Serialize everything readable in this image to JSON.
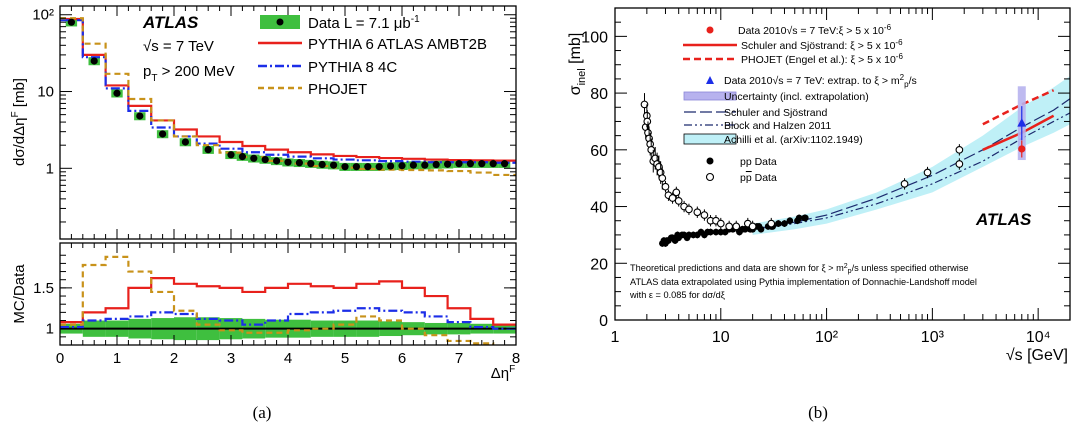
{
  "panels": {
    "a_caption": "(a)",
    "b_caption": "(b)"
  },
  "chart_data": [
    {
      "type": "line",
      "panel": "a-top",
      "xlabel": "ΔηF",
      "ylabel": "dσ/dΔηF [mb]",
      "ylim": [
        0.12,
        130
      ],
      "yscale": "log",
      "ytick_labels": [
        "1",
        "10",
        "10²"
      ],
      "xlim": [
        0,
        8
      ],
      "annotations": [
        "ATLAS",
        "√s = 7 TeV",
        "pT > 200 MeV"
      ],
      "legend_position": "top-right",
      "data": {
        "name": "Data L = 7.1 μb-1",
        "x": [
          0.2,
          0.6,
          1.0,
          1.4,
          1.8,
          2.2,
          2.6,
          3.0,
          3.2,
          3.4,
          3.6,
          3.8,
          4.0,
          4.2,
          4.4,
          4.6,
          4.8,
          5.0,
          5.2,
          5.4,
          5.6,
          5.8,
          6.0,
          6.2,
          6.4,
          6.6,
          6.8,
          7.0,
          7.2,
          7.4,
          7.6,
          7.8
        ],
        "y": [
          80,
          25,
          9.5,
          4.8,
          2.8,
          2.2,
          1.75,
          1.5,
          1.42,
          1.35,
          1.3,
          1.25,
          1.2,
          1.18,
          1.15,
          1.12,
          1.1,
          1.05,
          1.05,
          1.05,
          1.05,
          1.07,
          1.08,
          1.1,
          1.1,
          1.12,
          1.13,
          1.15,
          1.15,
          1.15,
          1.15,
          1.15
        ],
        "band_rel": 0.12
      },
      "series": [
        {
          "name": "PYTHIA 6 ATLAS AMBT2B",
          "color": "#e8211c",
          "dash": "solid",
          "edges": [
            0,
            0.4,
            0.8,
            1.2,
            1.6,
            2.0,
            2.4,
            2.8,
            3.2,
            3.6,
            4.0,
            4.4,
            4.8,
            5.2,
            5.6,
            6.0,
            6.4,
            6.8,
            7.2,
            7.6,
            8.0
          ],
          "values": [
            88,
            30,
            12,
            6.5,
            4.2,
            3.2,
            2.6,
            2.2,
            1.95,
            1.75,
            1.62,
            1.52,
            1.45,
            1.4,
            1.36,
            1.33,
            1.3,
            1.28,
            1.27,
            1.26
          ]
        },
        {
          "name": "PYTHIA 8 4C",
          "color": "#1c2ee8",
          "dash": "dashdot",
          "edges": [
            0,
            0.4,
            0.8,
            1.2,
            1.6,
            2.0,
            2.4,
            2.8,
            3.2,
            3.6,
            4.0,
            4.4,
            4.8,
            5.2,
            5.6,
            6.0,
            6.4,
            6.8,
            7.2,
            7.6,
            8.0
          ],
          "values": [
            85,
            28,
            11,
            5.6,
            3.4,
            2.6,
            2.1,
            1.8,
            1.62,
            1.5,
            1.42,
            1.35,
            1.3,
            1.27,
            1.24,
            1.22,
            1.2,
            1.2,
            1.2,
            1.18
          ]
        },
        {
          "name": "PHOJET",
          "color": "#c8921a",
          "dash": "dashed",
          "edges": [
            0,
            0.4,
            0.8,
            1.2,
            1.6,
            2.0,
            2.4,
            2.8,
            3.2,
            3.6,
            4.0,
            4.4,
            4.8,
            5.2,
            5.6,
            6.0,
            6.4,
            6.8,
            7.2,
            7.6,
            8.0
          ],
          "values": [
            90,
            42,
            17,
            8,
            4.2,
            2.6,
            2.0,
            1.6,
            1.4,
            1.25,
            1.15,
            1.07,
            1.02,
            0.98,
            0.96,
            0.95,
            0.94,
            0.92,
            0.88,
            0.82
          ]
        }
      ]
    },
    {
      "type": "line",
      "panel": "a-ratio",
      "xlabel": "ΔηF",
      "ylabel": "MC/Data",
      "ylim": [
        0.8,
        2.05
      ],
      "yticks": [
        1,
        1.5
      ],
      "ytick_labels": [
        "1",
        "1.5"
      ],
      "xlim": [
        0,
        8
      ],
      "xticks": [
        0,
        1,
        2,
        3,
        4,
        5,
        6,
        7,
        8
      ],
      "xtick_labels": [
        "0",
        "1",
        "2",
        "3",
        "4",
        "5",
        "6",
        "7",
        "8"
      ],
      "band": {
        "edges": [
          0,
          0.4,
          0.8,
          1.2,
          1.6,
          2.0,
          2.4,
          2.8,
          3.2,
          3.6,
          4.0,
          4.4,
          4.8,
          5.2,
          5.6,
          6.0,
          6.4,
          6.8,
          7.2,
          7.6,
          8.0
        ],
        "low": [
          0.94,
          0.9,
          0.9,
          0.88,
          0.87,
          0.86,
          0.86,
          0.87,
          0.88,
          0.89,
          0.89,
          0.9,
          0.9,
          0.9,
          0.91,
          0.92,
          0.93,
          0.93,
          0.94,
          0.94
        ],
        "high": [
          1.06,
          1.1,
          1.1,
          1.12,
          1.13,
          1.14,
          1.14,
          1.13,
          1.12,
          1.11,
          1.11,
          1.1,
          1.1,
          1.1,
          1.09,
          1.08,
          1.07,
          1.07,
          1.06,
          1.06
        ]
      },
      "series": [
        {
          "name": "PYTHIA 6 ATLAS AMBT2B",
          "color": "#e8211c",
          "dash": "solid",
          "edges": [
            0,
            0.4,
            0.8,
            1.2,
            1.6,
            2.0,
            2.4,
            2.8,
            3.2,
            3.6,
            4.0,
            4.4,
            4.8,
            5.2,
            5.6,
            6.0,
            6.4,
            6.8,
            7.2,
            7.6,
            8.0
          ],
          "values": [
            1.08,
            1.2,
            1.25,
            1.5,
            1.62,
            1.55,
            1.52,
            1.5,
            1.45,
            1.5,
            1.55,
            1.52,
            1.5,
            1.55,
            1.58,
            1.5,
            1.4,
            1.25,
            1.12,
            1.05
          ]
        },
        {
          "name": "PYTHIA 8 4C",
          "color": "#1c2ee8",
          "dash": "dashdot",
          "edges": [
            0,
            0.4,
            0.8,
            1.2,
            1.6,
            2.0,
            2.4,
            2.8,
            3.2,
            3.6,
            4.0,
            4.4,
            4.8,
            5.2,
            5.6,
            6.0,
            6.4,
            6.8,
            7.2,
            7.6,
            8.0
          ],
          "values": [
            1.02,
            1.1,
            1.12,
            1.15,
            1.2,
            1.18,
            1.12,
            1.1,
            1.05,
            1.1,
            1.18,
            1.2,
            1.22,
            1.25,
            1.22,
            1.2,
            1.15,
            1.08,
            1.02,
            1.0
          ]
        },
        {
          "name": "PHOJET",
          "color": "#c8921a",
          "dash": "dashed",
          "edges": [
            0,
            0.4,
            0.8,
            1.2,
            1.6,
            2.0,
            2.4,
            2.8,
            3.2,
            3.6,
            4.0,
            4.4,
            4.8,
            5.2,
            5.6,
            6.0,
            6.4,
            6.8,
            7.2,
            7.6,
            8.0
          ],
          "values": [
            1.05,
            1.78,
            1.88,
            1.7,
            1.45,
            1.22,
            1.05,
            0.98,
            0.95,
            0.95,
            0.98,
            1.0,
            1.05,
            1.15,
            1.1,
            1.0,
            0.92,
            0.85,
            0.82,
            0.78
          ]
        }
      ]
    },
    {
      "type": "scatter",
      "panel": "b",
      "xlabel": "√s [GeV]",
      "ylabel": "σinel [mb]",
      "xscale": "log",
      "xlim": [
        1,
        20000
      ],
      "ylim": [
        0,
        110
      ],
      "xtick_labels": [
        "1",
        "10",
        "10²",
        "10³",
        "10⁴"
      ],
      "yticks": [
        0,
        20,
        40,
        60,
        80,
        100
      ],
      "ytick_labels": [
        "0",
        "20",
        "40",
        "60",
        "80",
        "100"
      ],
      "title": "ATLAS",
      "legend_position": "top-right",
      "legend": [
        "Data 2010√s = 7 TeV:ξ > 5 x 10⁻⁶",
        "Schuler and Sjöstrand: ξ > 5 x 10⁻⁶",
        "PHOJET (Engel et al.): ξ > 5 x 10⁻⁶",
        "Data 2010√s = 7 TeV: extrap. to ξ > m²p/s",
        "Uncertainty (incl. extrapolation)",
        "Schuler and Sjöstrand",
        "Block and Halzen 2011",
        "Achilli et al. (arXiv:1102.1949)",
        "pp Data",
        "pp̄ Data"
      ],
      "footnote": [
        "Theoretical predictions and data are shown for ξ > m²p/s unless specified otherwise",
        "ATLAS data extrapolated using Pythia implementation of Donnachie-Landshoff model",
        "with ε = 0.085 for dσ/dξ"
      ],
      "series": [
        {
          "name": "pp Data",
          "x": [
            2.8,
            2.9,
            3.0,
            3.1,
            3.2,
            3.4,
            3.5,
            3.7,
            3.9,
            4.0,
            4.3,
            4.5,
            4.8,
            5.0,
            5.5,
            6.0,
            6.5,
            7.0,
            7.5,
            8.0,
            9.0,
            10,
            11,
            12,
            13,
            15,
            16,
            17,
            19,
            20,
            22,
            23,
            24,
            28,
            30,
            31,
            35,
            40,
            45,
            53,
            55,
            62,
            63
          ],
          "y": [
            27,
            28,
            27,
            28,
            28,
            29,
            29,
            28,
            30,
            29,
            30,
            30,
            29,
            30,
            30,
            30,
            31,
            30,
            31,
            31,
            31,
            31,
            31,
            32,
            32,
            31,
            32,
            32,
            32,
            32,
            33,
            33,
            32,
            33,
            33,
            33,
            34,
            34,
            35,
            35,
            36,
            36,
            36
          ]
        },
        {
          "name": "pp̄ Data",
          "x": [
            1.9,
            1.95,
            2.0,
            2.02,
            2.05,
            2.1,
            2.15,
            2.2,
            2.3,
            2.4,
            2.5,
            2.6,
            2.7,
            2.8,
            3.0,
            3.2,
            3.5,
            3.8,
            4.0,
            4.5,
            5.0,
            6.0,
            7.0,
            8.0,
            9.0,
            10,
            12,
            14,
            18,
            20,
            30,
            546,
            900,
            1800,
            1800
          ],
          "y": [
            76,
            68,
            72,
            70,
            66,
            64,
            62,
            60,
            56,
            57,
            55,
            54,
            52,
            50,
            47,
            44,
            43,
            45,
            42,
            40,
            39,
            38,
            37,
            35,
            35,
            34,
            33,
            33,
            34,
            33,
            34,
            48,
            52,
            55,
            60
          ]
        },
        {
          "name": "Data 2010√s = 7 TeV:ξ > 5 x 10⁻⁶",
          "x": [
            7000
          ],
          "y": [
            60.3
          ]
        },
        {
          "name": "Data 2010√s = 7 TeV: extrap. to ξ > m²p/s",
          "x": [
            7000
          ],
          "y": [
            69.4
          ]
        },
        {
          "name": "Schuler and Sjöstrand: ξ > 5 x 10⁻⁶",
          "x": [
            3000,
            7000,
            14000
          ],
          "y": [
            60,
            66,
            72
          ]
        },
        {
          "name": "PHOJET (Engel et al.): ξ > 5 x 10⁻⁶",
          "x": [
            3000,
            7000,
            14000
          ],
          "y": [
            69,
            76,
            81
          ]
        },
        {
          "name": "Schuler and Sjöstrand",
          "x": [
            20,
            50,
            100,
            300,
            1000,
            3000,
            7000,
            14000,
            20000
          ],
          "y": [
            32,
            34.5,
            37,
            43,
            51,
            60,
            68,
            74,
            78
          ]
        },
        {
          "name": "Block and Halzen 2011",
          "x": [
            20,
            50,
            100,
            300,
            1000,
            3000,
            7000,
            14000,
            20000
          ],
          "y": [
            32,
            34,
            36,
            41,
            48,
            56,
            64,
            70,
            73
          ]
        },
        {
          "name": "Achilli et al. (arXiv:1102.1949)",
          "x": [
            20,
            50,
            100,
            300,
            1000,
            3000,
            7000,
            14000,
            20000
          ],
          "y_low": [
            30,
            32,
            34,
            39,
            45,
            54,
            61,
            66,
            69
          ],
          "y_high": [
            34,
            36.5,
            39,
            45,
            54,
            65,
            75,
            82,
            86
          ]
        }
      ]
    }
  ]
}
